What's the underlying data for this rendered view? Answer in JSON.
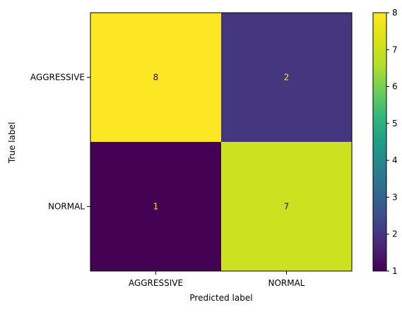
{
  "chart_data": {
    "type": "heatmap",
    "title": "",
    "xlabel": "Predicted label",
    "ylabel": "True label",
    "x_categories": [
      "AGGRESSIVE",
      "NORMAL"
    ],
    "y_categories": [
      "AGGRESSIVE",
      "NORMAL"
    ],
    "values": [
      [
        8,
        2
      ],
      [
        1,
        7
      ]
    ],
    "colorbar": {
      "min": 1,
      "max": 8,
      "ticks": [
        1,
        2,
        3,
        4,
        5,
        6,
        7,
        8
      ],
      "colormap": "viridis"
    },
    "colors": {
      "low_text": "#fde725",
      "high_text": "#440154"
    }
  }
}
